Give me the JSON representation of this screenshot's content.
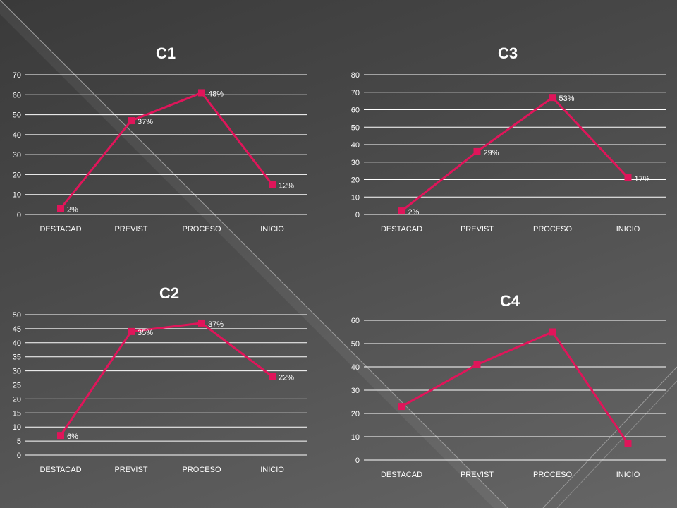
{
  "colors": {
    "series": "#e0155a",
    "grid": "#ffffff",
    "text": "#ffffff"
  },
  "chart_data": [
    {
      "type": "line",
      "title": "C1",
      "categories": [
        "DESTACAD",
        "PREVIST",
        "PROCESO",
        "INICIO"
      ],
      "values": [
        3,
        47,
        61,
        15
      ],
      "labels": [
        "2%",
        "37%",
        "48%",
        "12%"
      ],
      "ylim": [
        0,
        70
      ],
      "ystep": 10,
      "grid": true
    },
    {
      "type": "line",
      "title": "C3",
      "categories": [
        "DESTACAD",
        "PREVIST",
        "PROCESO",
        "INICIO"
      ],
      "values": [
        2,
        36,
        67,
        21
      ],
      "labels": [
        "2%",
        "29%",
        "53%",
        "17%"
      ],
      "ylim": [
        0,
        80
      ],
      "ystep": 10,
      "grid": true
    },
    {
      "type": "line",
      "title": "C2",
      "categories": [
        "DESTACAD",
        "PREVIST",
        "PROCESO",
        "INICIO"
      ],
      "values": [
        7,
        44,
        47,
        28
      ],
      "labels": [
        "6%",
        "35%",
        "37%",
        "22%"
      ],
      "ylim": [
        0,
        50
      ],
      "ystep": 5,
      "grid": true
    },
    {
      "type": "line",
      "title": "C4",
      "categories": [
        "DESTACAD",
        "PREVIST",
        "PROCESO",
        "INICIO"
      ],
      "values": [
        23,
        41,
        55,
        7
      ],
      "labels": [
        "",
        "",
        "",
        ""
      ],
      "ylim": [
        0,
        60
      ],
      "ystep": 10,
      "grid": true
    }
  ]
}
